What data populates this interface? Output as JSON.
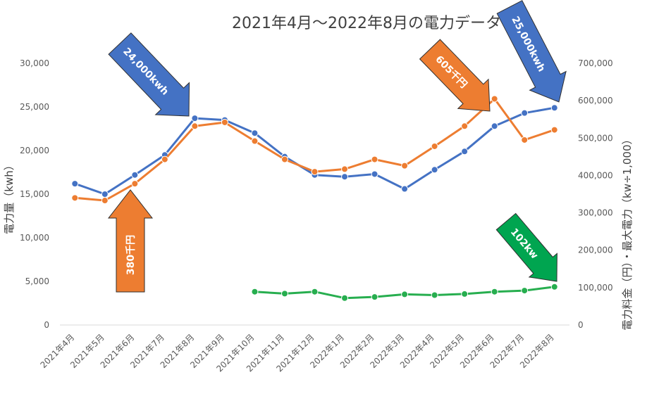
{
  "chart_data": {
    "type": "line",
    "title": "2021年4月～2022年8月の電力データ",
    "ylabel": "電力量（kwh）",
    "y2label": "電力料金（円）・最大電力（kw÷1,000）",
    "ylim": [
      0,
      30000
    ],
    "y2lim": [
      0,
      700000
    ],
    "grid": false,
    "categories": [
      "2021年4月",
      "2021年5月",
      "2021年6月",
      "2021年7月",
      "2021年8月",
      "2021年9月",
      "2021年10月",
      "2021年11月",
      "2021年12月",
      "2022年1月",
      "2022年2月",
      "2022年3月",
      "2022年4月",
      "2022年5月",
      "2022年6月",
      "2022年7月",
      "2022年8月"
    ],
    "y_ticks": [
      "0",
      "5,000",
      "10,000",
      "15,000",
      "20,000",
      "25,000",
      "30,000"
    ],
    "y2_ticks": [
      "0",
      "100,000",
      "200,000",
      "300,000",
      "400,000",
      "500,000",
      "600,000",
      "700,000"
    ],
    "series": [
      {
        "axis": "left",
        "color": "#4472c4",
        "values": [
          16200,
          15000,
          17200,
          19500,
          23700,
          23500,
          22000,
          19300,
          17200,
          17000,
          17300,
          15600,
          17800,
          19900,
          22800,
          24300,
          24900
        ]
      },
      {
        "axis": "right",
        "color": "#ed7d31",
        "values": [
          340000,
          333000,
          378000,
          443000,
          532000,
          542000,
          492000,
          443000,
          410000,
          417000,
          443000,
          426000,
          478000,
          532000,
          605000,
          495000,
          522000
        ]
      },
      {
        "axis": "right",
        "color": "#27ae4f",
        "values": [
          null,
          null,
          null,
          null,
          null,
          null,
          89000,
          84000,
          89000,
          72000,
          75000,
          82000,
          80000,
          83000,
          89000,
          92000,
          102000
        ]
      }
    ],
    "annotations": [
      {
        "text": "24,000kwh",
        "color": "#4472c4"
      },
      {
        "text": "380千円",
        "color": "#ed7d31"
      },
      {
        "text": "605千円",
        "color": "#ed7d31"
      },
      {
        "text": "25,000kwh",
        "color": "#4472c4"
      },
      {
        "text": "102kw",
        "color": "#00a550"
      }
    ]
  }
}
